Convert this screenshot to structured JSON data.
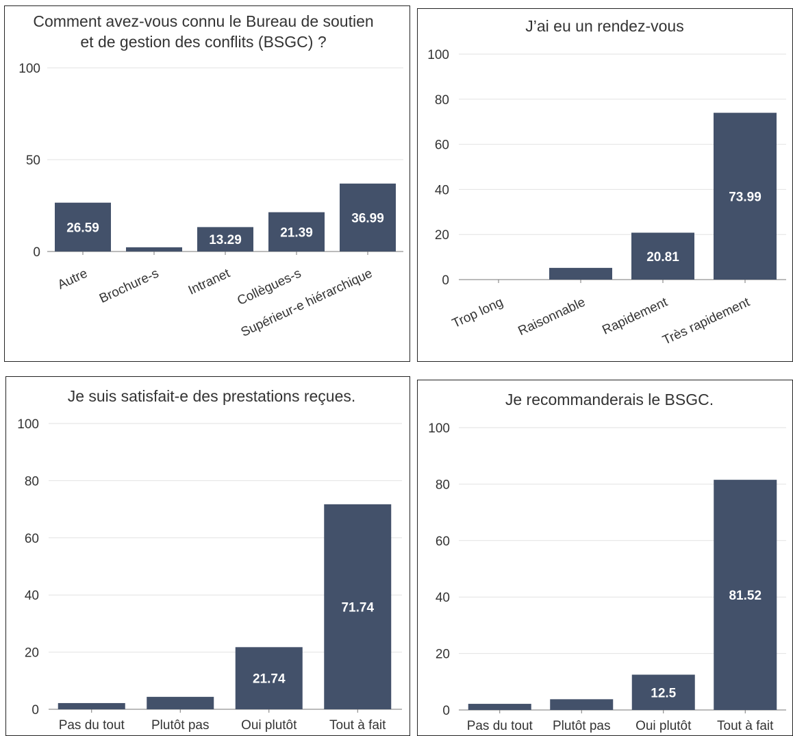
{
  "colors": {
    "bar": "#43516a",
    "value_label": "#ffffff",
    "grid": "#e2e2e2",
    "axis": "#777777"
  },
  "chart_data": [
    {
      "type": "bar",
      "title": "Comment avez-vous connu le Bureau de soutien et de gestion des conflits (BSGC) ?",
      "title_lines": [
        "Comment avez-vous connu le Bureau de soutien",
        "et de gestion des conflits (BSGC) ?"
      ],
      "categories": [
        "Autre",
        "Brochure-s",
        "Intranet",
        "Collègues-s",
        "Supérieur-e hiérarchique"
      ],
      "values": [
        26.59,
        2.3,
        13.29,
        21.39,
        36.99
      ],
      "data_labels": [
        "26.59",
        "",
        "13.29",
        "21.39",
        "36.99"
      ],
      "yticks": [
        0,
        50,
        100
      ],
      "ylim": [
        0,
        100
      ],
      "xlabel": "",
      "ylabel": "",
      "grid": true,
      "xtick_rotation": -25
    },
    {
      "type": "bar",
      "title": "J’ai eu un rendez-vous",
      "title_lines": [
        "J’ai eu un rendez-vous"
      ],
      "categories": [
        "Trop long",
        "Raisonnable",
        "Rapidement",
        "Très rapidement"
      ],
      "values": [
        0,
        5.2,
        20.81,
        73.99
      ],
      "data_labels": [
        "",
        "",
        "20.81",
        "73.99"
      ],
      "yticks": [
        0,
        20,
        40,
        60,
        80,
        100
      ],
      "ylim": [
        0,
        100
      ],
      "xlabel": "",
      "ylabel": "",
      "grid": true,
      "xtick_rotation": -25
    },
    {
      "type": "bar",
      "title": "Je suis satisfait-e des prestations reçues.",
      "title_lines": [
        "Je suis satisfait-e des prestations reçues."
      ],
      "categories": [
        "Pas du tout",
        "Plutôt pas",
        "Oui plutôt",
        "Tout à fait"
      ],
      "values": [
        2.17,
        4.35,
        21.74,
        71.74
      ],
      "data_labels": [
        "",
        "",
        "21.74",
        "71.74"
      ],
      "yticks": [
        0,
        20,
        40,
        60,
        80,
        100
      ],
      "ylim": [
        0,
        100
      ],
      "xlabel": "",
      "ylabel": "",
      "grid": true,
      "xtick_rotation": 0
    },
    {
      "type": "bar",
      "title": "Je recommanderais le BSGC.",
      "title_lines": [
        "Je recommanderais le BSGC."
      ],
      "categories": [
        "Pas du tout",
        "Plutôt pas",
        "Oui plutôt",
        "Tout à fait"
      ],
      "values": [
        2.17,
        3.8,
        12.5,
        81.52
      ],
      "data_labels": [
        "",
        "",
        "12.5",
        "81.52"
      ],
      "yticks": [
        0,
        20,
        40,
        60,
        80,
        100
      ],
      "ylim": [
        0,
        100
      ],
      "xlabel": "",
      "ylabel": "",
      "grid": true,
      "xtick_rotation": 0
    }
  ]
}
